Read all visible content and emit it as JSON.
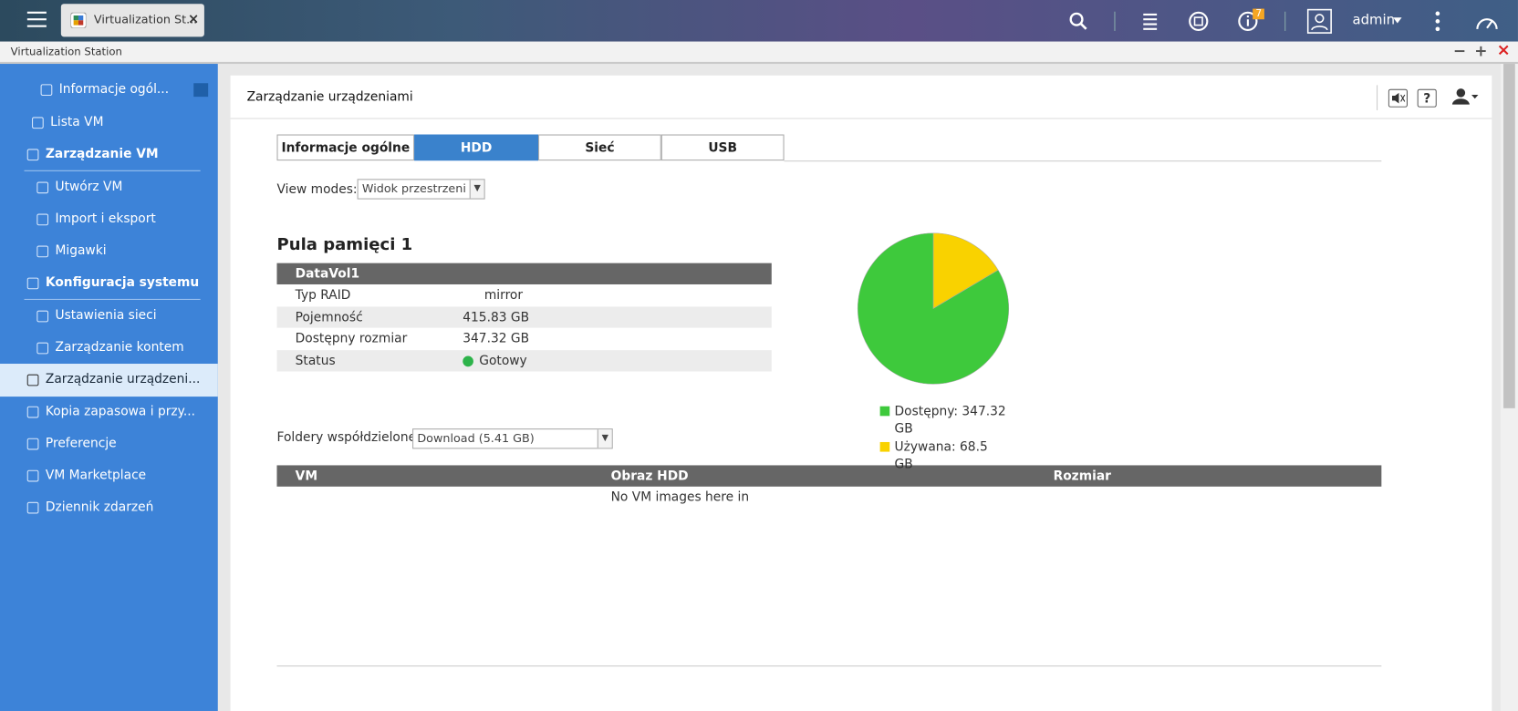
{
  "top_bar": {
    "tab_title": "Virtualization St...",
    "user": "admin",
    "notification_count": 7
  },
  "window": {
    "title": "Virtualization Station"
  },
  "sidebar": {
    "items": [
      "Informacje ogól...",
      "Lista VM",
      "Zarządzanie VM",
      "Utwórz VM",
      "Import i eksport",
      "Migawki",
      "Konfiguracja systemu",
      "Ustawienia sieci",
      "Zarządzanie kontem",
      "Zarządzanie urządzeni...",
      "Kopia zapasowa i przy...",
      "Preferencje",
      "VM Marketplace",
      "Dziennik zdarzeń"
    ]
  },
  "panel": {
    "title": "Zarządzanie urządzeniami",
    "tabs": [
      "Informacje ogólne",
      "HDD",
      "Sieć",
      "USB"
    ],
    "view_modes_label": "View modes:",
    "view_mode": "Widok przestrzeni d",
    "pool_title": "Pula pamięci 1",
    "volume": {
      "name": "DataVol1",
      "rows": [
        [
          "Typ RAID",
          "mirror"
        ],
        [
          "Pojemność",
          "415.83 GB"
        ],
        [
          "Dostępny rozmiar",
          "347.32 GB"
        ],
        [
          "Status",
          "Gotowy"
        ]
      ]
    },
    "shared_folders_label": "Foldery współdzielone:",
    "shared_folder": "Download (5.41 GB)",
    "vm_table": {
      "columns": [
        "VM",
        "Obraz HDD",
        "Rozmiar"
      ],
      "empty_message": "No VM images here in"
    }
  },
  "chart_data": {
    "type": "pie",
    "values": [
      347.32,
      68.5
    ],
    "colors": [
      "#3ec93c",
      "#f9d200"
    ],
    "legend": [
      "Dostępny: 347.32 GB",
      "Używana: 68.5 GB"
    ]
  }
}
